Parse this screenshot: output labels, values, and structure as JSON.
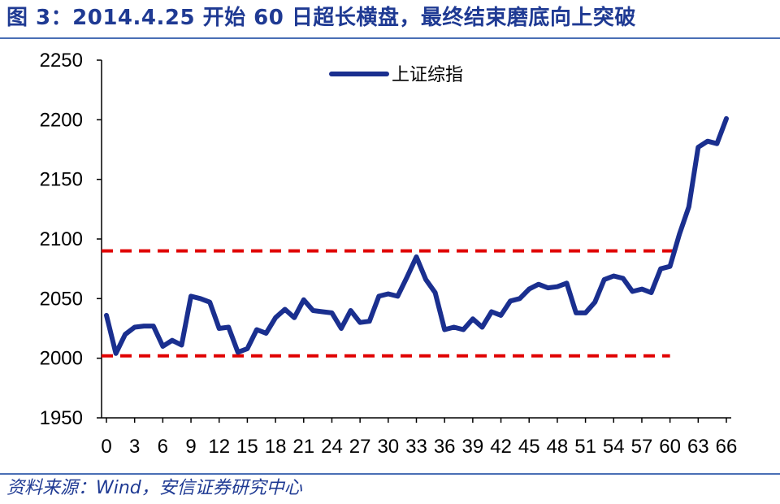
{
  "figure": {
    "title": "图 3：2014.4.25 开始 60 日超长横盘，最终结束磨底向上突破",
    "source": "资料来源：Wind，安信证券研究中心"
  },
  "colors": {
    "series": "#1a2f8f",
    "reference_lines": "#e00000",
    "title_text": "#1f3a93",
    "rules": "#4a6fb5"
  },
  "chart_data": {
    "type": "line",
    "ylim": [
      1950,
      2250
    ],
    "yticks": [
      1950,
      2000,
      2050,
      2100,
      2150,
      2200,
      2250
    ],
    "xlim": [
      0,
      66
    ],
    "xticks": [
      0,
      3,
      6,
      9,
      12,
      15,
      18,
      21,
      24,
      27,
      30,
      33,
      36,
      39,
      42,
      45,
      48,
      51,
      54,
      57,
      60,
      63,
      66
    ],
    "grid": false,
    "legend_position": "top-center",
    "series": [
      {
        "name": "上证综指",
        "x": [
          0,
          1,
          2,
          3,
          4,
          5,
          6,
          7,
          8,
          9,
          10,
          11,
          12,
          13,
          14,
          15,
          16,
          17,
          18,
          19,
          20,
          21,
          22,
          23,
          24,
          25,
          26,
          27,
          28,
          29,
          30,
          31,
          32,
          33,
          34,
          35,
          36,
          37,
          38,
          39,
          40,
          41,
          42,
          43,
          44,
          45,
          46,
          47,
          48,
          49,
          50,
          51,
          52,
          53,
          54,
          55,
          56,
          57,
          58,
          59,
          60,
          61,
          62,
          63,
          64,
          65,
          66
        ],
        "values": [
          2036,
          2004,
          2020,
          2026,
          2027,
          2027,
          2010,
          2015,
          2011,
          2052,
          2050,
          2047,
          2025,
          2026,
          2005,
          2008,
          2024,
          2021,
          2034,
          2041,
          2034,
          2049,
          2040,
          2039,
          2038,
          2025,
          2040,
          2030,
          2031,
          2052,
          2054,
          2052,
          2068,
          2085,
          2066,
          2055,
          2024,
          2026,
          2024,
          2033,
          2026,
          2039,
          2036,
          2048,
          2050,
          2058,
          2062,
          2059,
          2060,
          2063,
          2038,
          2038,
          2047,
          2066,
          2069,
          2067,
          2056,
          2058,
          2055,
          2075,
          2077,
          2104,
          2127,
          2177,
          2182,
          2180,
          2201
        ]
      }
    ],
    "reference_lines": [
      {
        "y": 2090,
        "x_start": 0,
        "x_end": 61
      },
      {
        "y": 2002,
        "x_start": 0,
        "x_end": 60
      }
    ]
  }
}
